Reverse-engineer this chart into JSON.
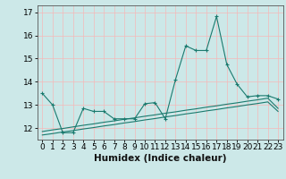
{
  "xlabel": "Humidex (Indice chaleur)",
  "x": [
    0,
    1,
    2,
    3,
    4,
    5,
    6,
    7,
    8,
    9,
    10,
    11,
    12,
    13,
    14,
    15,
    16,
    17,
    18,
    19,
    20,
    21,
    22,
    23
  ],
  "line1_y": [
    13.5,
    13.0,
    11.8,
    11.8,
    12.85,
    12.72,
    12.72,
    12.4,
    12.4,
    12.4,
    13.05,
    13.1,
    12.4,
    14.1,
    15.55,
    15.35,
    15.35,
    16.82,
    14.75,
    13.9,
    13.35,
    13.4,
    13.4,
    13.25
  ],
  "line2_y": [
    11.85,
    11.92,
    11.98,
    12.05,
    12.12,
    12.18,
    12.25,
    12.31,
    12.38,
    12.44,
    12.51,
    12.57,
    12.64,
    12.7,
    12.77,
    12.83,
    12.9,
    12.96,
    13.03,
    13.09,
    13.16,
    13.22,
    13.29,
    12.85
  ],
  "line3_y": [
    11.7,
    11.76,
    11.83,
    11.89,
    11.96,
    12.02,
    12.09,
    12.15,
    12.22,
    12.28,
    12.35,
    12.41,
    12.48,
    12.54,
    12.61,
    12.67,
    12.74,
    12.8,
    12.87,
    12.93,
    13.0,
    13.06,
    13.13,
    12.72
  ],
  "bg_color": "#cce8e8",
  "grid_color": "#f5b8b8",
  "line_color": "#1a7a6e",
  "ylim": [
    11.5,
    17.3
  ],
  "yticks": [
    12,
    13,
    14,
    15,
    16,
    17
  ],
  "xticks": [
    0,
    1,
    2,
    3,
    4,
    5,
    6,
    7,
    8,
    9,
    10,
    11,
    12,
    13,
    14,
    15,
    16,
    17,
    18,
    19,
    20,
    21,
    22,
    23
  ],
  "tick_fontsize": 6.5,
  "label_fontsize": 7.5
}
